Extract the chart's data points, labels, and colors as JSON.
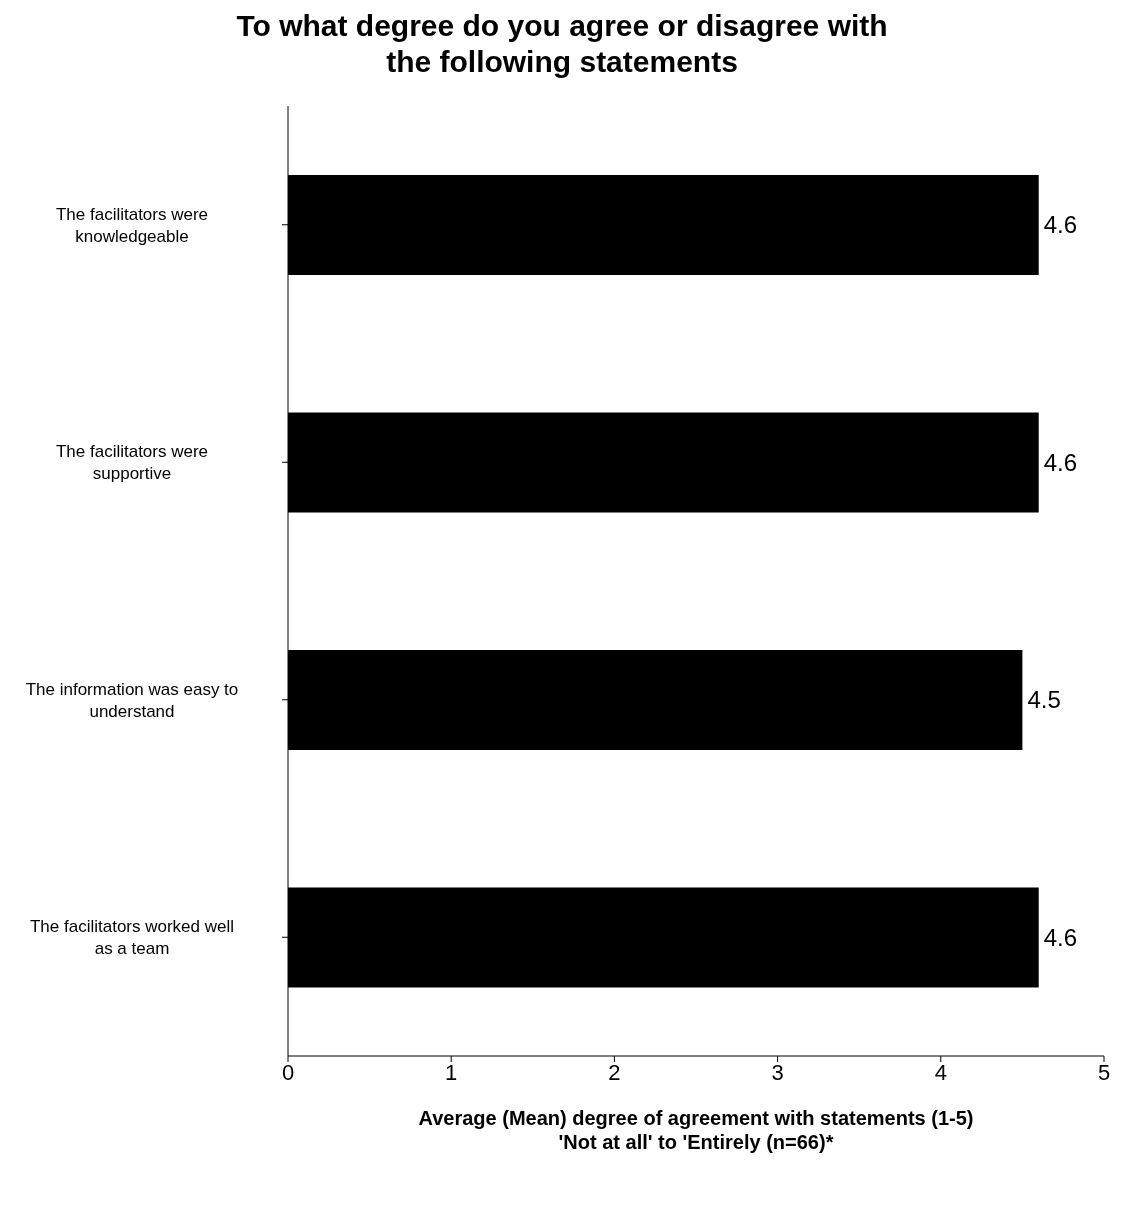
{
  "chart_data": {
    "type": "bar",
    "orientation": "horizontal",
    "title": "To what degree do you agree or disagree with the following statements",
    "xlabel": "Average (Mean) degree of agreement with statements (1-5)\n'Not at all' to 'Entirely (n=66)*",
    "categories": [
      "The facilitators were knowledgeable",
      "The facilitators were supportive",
      "The information was easy to understand",
      "The facilitators worked well as a team"
    ],
    "values": [
      4.6,
      4.6,
      4.5,
      4.6
    ],
    "color": "#000000",
    "xlim": [
      0,
      5
    ],
    "xticks": [
      0,
      1,
      2,
      3,
      4,
      5
    ],
    "data_labels": true,
    "grid": false
  }
}
